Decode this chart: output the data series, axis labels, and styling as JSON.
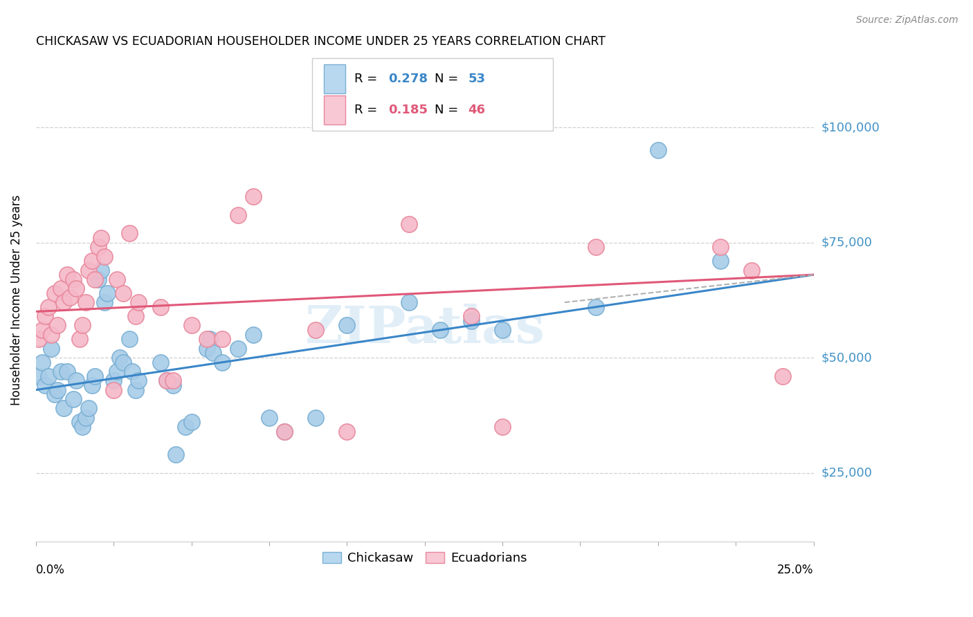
{
  "title": "CHICKASAW VS ECUADORIAN HOUSEHOLDER INCOME UNDER 25 YEARS CORRELATION CHART",
  "source": "Source: ZipAtlas.com",
  "ylabel": "Householder Income Under 25 years",
  "xlim": [
    0.0,
    0.25
  ],
  "ylim": [
    10000,
    115000
  ],
  "yticks": [
    25000,
    50000,
    75000,
    100000
  ],
  "ytick_labels": [
    "$25,000",
    "$50,000",
    "$75,000",
    "$100,000"
  ],
  "xticks": [
    0.0,
    0.025,
    0.05,
    0.075,
    0.1,
    0.125,
    0.15,
    0.175,
    0.2,
    0.225,
    0.25
  ],
  "legend_label_blue": "Chickasaw",
  "legend_label_pink": "Ecuadorians",
  "watermark": "ZIPatlas",
  "blue_scatter_color": "#a8cce8",
  "blue_edge_color": "#7ab0d4",
  "pink_scatter_color": "#f5b8c8",
  "pink_edge_color": "#e8889c",
  "blue_line_color": "#3a86c8",
  "pink_line_color": "#e05878",
  "blue_scatter": [
    [
      0.001,
      46000
    ],
    [
      0.002,
      49000
    ],
    [
      0.003,
      44000
    ],
    [
      0.004,
      46000
    ],
    [
      0.005,
      52000
    ],
    [
      0.006,
      42000
    ],
    [
      0.007,
      43000
    ],
    [
      0.008,
      47000
    ],
    [
      0.009,
      39000
    ],
    [
      0.01,
      47000
    ],
    [
      0.012,
      41000
    ],
    [
      0.013,
      45000
    ],
    [
      0.014,
      36000
    ],
    [
      0.015,
      35000
    ],
    [
      0.016,
      37000
    ],
    [
      0.017,
      39000
    ],
    [
      0.018,
      44000
    ],
    [
      0.019,
      46000
    ],
    [
      0.02,
      67000
    ],
    [
      0.021,
      69000
    ],
    [
      0.022,
      62000
    ],
    [
      0.023,
      64000
    ],
    [
      0.025,
      45000
    ],
    [
      0.026,
      47000
    ],
    [
      0.027,
      50000
    ],
    [
      0.028,
      49000
    ],
    [
      0.03,
      54000
    ],
    [
      0.031,
      47000
    ],
    [
      0.032,
      43000
    ],
    [
      0.033,
      45000
    ],
    [
      0.04,
      49000
    ],
    [
      0.042,
      45000
    ],
    [
      0.044,
      44000
    ],
    [
      0.045,
      29000
    ],
    [
      0.048,
      35000
    ],
    [
      0.05,
      36000
    ],
    [
      0.055,
      52000
    ],
    [
      0.056,
      54000
    ],
    [
      0.057,
      51000
    ],
    [
      0.06,
      49000
    ],
    [
      0.065,
      52000
    ],
    [
      0.07,
      55000
    ],
    [
      0.075,
      37000
    ],
    [
      0.08,
      34000
    ],
    [
      0.09,
      37000
    ],
    [
      0.1,
      57000
    ],
    [
      0.12,
      62000
    ],
    [
      0.13,
      56000
    ],
    [
      0.14,
      58000
    ],
    [
      0.15,
      56000
    ],
    [
      0.18,
      61000
    ],
    [
      0.2,
      95000
    ],
    [
      0.22,
      71000
    ]
  ],
  "pink_scatter": [
    [
      0.001,
      54000
    ],
    [
      0.002,
      56000
    ],
    [
      0.003,
      59000
    ],
    [
      0.004,
      61000
    ],
    [
      0.005,
      55000
    ],
    [
      0.006,
      64000
    ],
    [
      0.007,
      57000
    ],
    [
      0.008,
      65000
    ],
    [
      0.009,
      62000
    ],
    [
      0.01,
      68000
    ],
    [
      0.011,
      63000
    ],
    [
      0.012,
      67000
    ],
    [
      0.013,
      65000
    ],
    [
      0.014,
      54000
    ],
    [
      0.015,
      57000
    ],
    [
      0.016,
      62000
    ],
    [
      0.017,
      69000
    ],
    [
      0.018,
      71000
    ],
    [
      0.019,
      67000
    ],
    [
      0.02,
      74000
    ],
    [
      0.021,
      76000
    ],
    [
      0.022,
      72000
    ],
    [
      0.025,
      43000
    ],
    [
      0.026,
      67000
    ],
    [
      0.028,
      64000
    ],
    [
      0.03,
      77000
    ],
    [
      0.032,
      59000
    ],
    [
      0.033,
      62000
    ],
    [
      0.04,
      61000
    ],
    [
      0.042,
      45000
    ],
    [
      0.044,
      45000
    ],
    [
      0.05,
      57000
    ],
    [
      0.055,
      54000
    ],
    [
      0.06,
      54000
    ],
    [
      0.065,
      81000
    ],
    [
      0.07,
      85000
    ],
    [
      0.08,
      34000
    ],
    [
      0.09,
      56000
    ],
    [
      0.1,
      34000
    ],
    [
      0.12,
      79000
    ],
    [
      0.14,
      59000
    ],
    [
      0.15,
      35000
    ],
    [
      0.18,
      74000
    ],
    [
      0.22,
      74000
    ],
    [
      0.23,
      69000
    ],
    [
      0.24,
      46000
    ]
  ],
  "blue_line_x": [
    0.0,
    0.25
  ],
  "blue_line_y": [
    43000,
    68000
  ],
  "pink_line_x": [
    0.0,
    0.25
  ],
  "pink_line_y": [
    60000,
    68000
  ],
  "dash_line_x": [
    0.17,
    0.25
  ],
  "dash_line_y": [
    62000,
    68000
  ]
}
